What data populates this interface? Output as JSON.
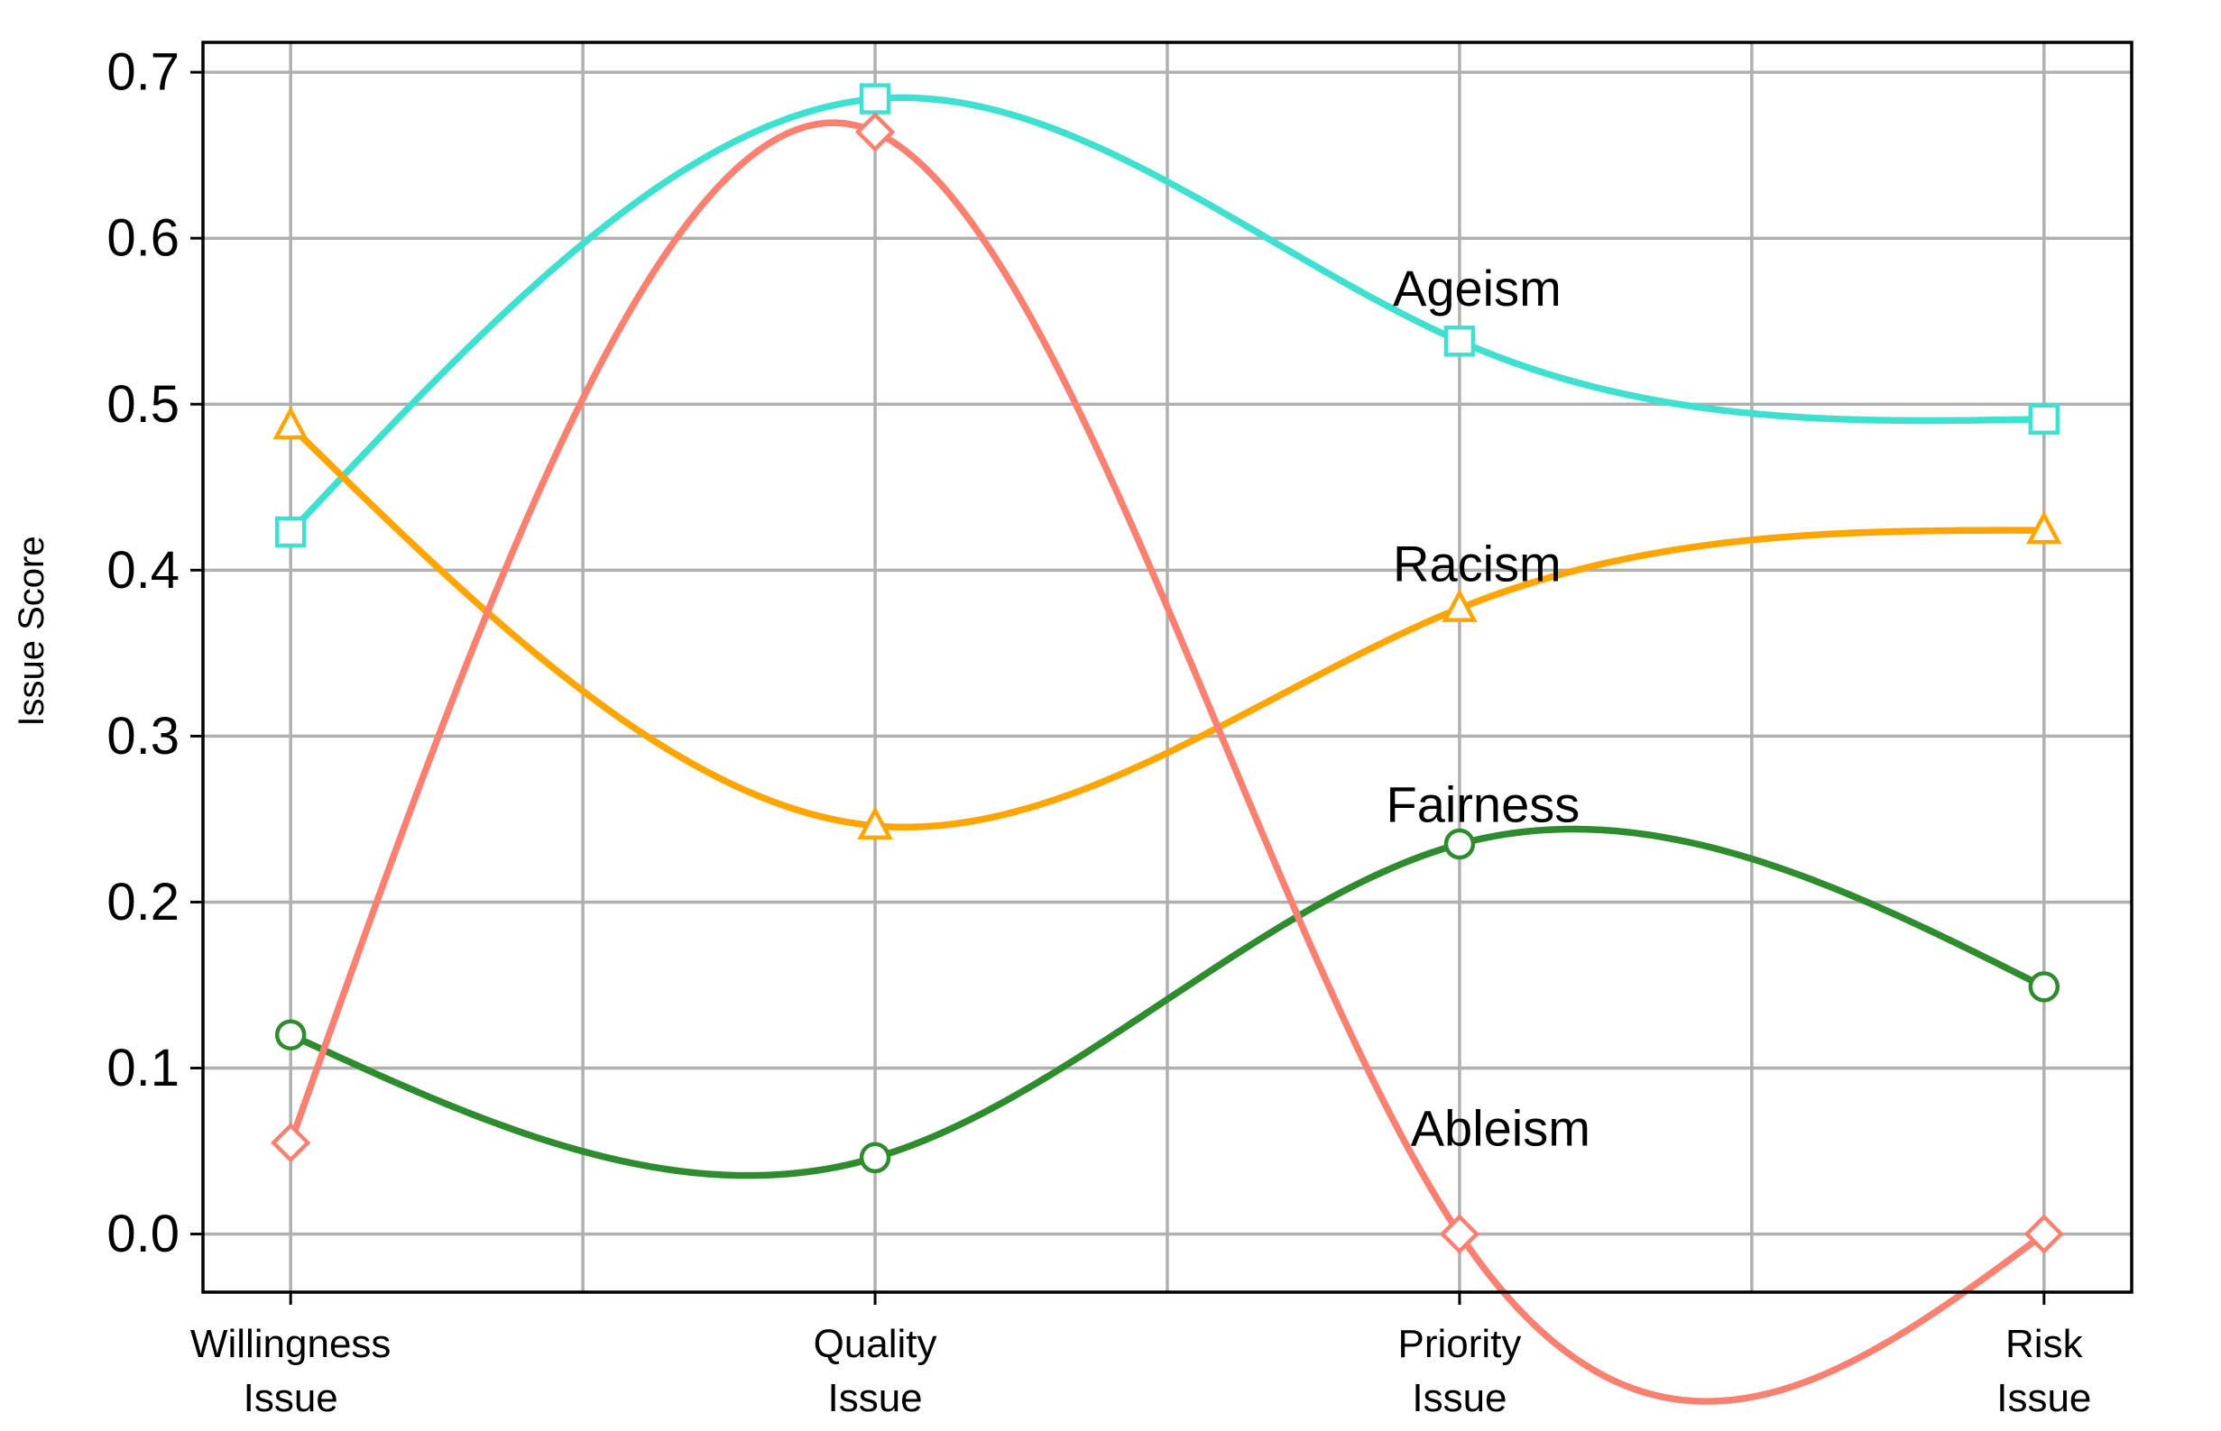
{
  "chart_data": {
    "type": "line",
    "title": "",
    "xlabel": "",
    "ylabel": "Issue Score",
    "categories": [
      [
        "Willingness",
        "Issue"
      ],
      [
        "Quality",
        "Issue"
      ],
      [
        "Priority",
        "Issue"
      ],
      [
        "Risk",
        "Issue"
      ]
    ],
    "x_range": [
      -0.15,
      3.15
    ],
    "ylim": [
      -0.035,
      0.718
    ],
    "yticks": [
      0.0,
      0.1,
      0.2,
      0.3,
      0.4,
      0.5,
      0.6,
      0.7
    ],
    "ytick_labels": [
      "0.0",
      "0.1",
      "0.2",
      "0.3",
      "0.4",
      "0.5",
      "0.6",
      "0.7"
    ],
    "x_gridlines": [
      0,
      0.5,
      1,
      1.5,
      2,
      2.5,
      3
    ],
    "grid": true,
    "legend": "none",
    "smooth": true,
    "series": [
      {
        "name": "Ageism",
        "color": "#40E0D0",
        "marker": "square",
        "values": [
          0.423,
          0.684,
          0.538,
          0.491
        ],
        "label_anchor": [
          2.03,
          0.57
        ]
      },
      {
        "name": "Racism",
        "color": "#FFA500",
        "marker": "triangle",
        "values": [
          0.487,
          0.246,
          0.377,
          0.424
        ],
        "label_anchor": [
          2.03,
          0.404
        ]
      },
      {
        "name": "Fairness",
        "color": "#2E8B2E",
        "marker": "circle",
        "values": [
          0.12,
          0.046,
          0.235,
          0.149
        ],
        "label_anchor": [
          2.04,
          0.259
        ]
      },
      {
        "name": "Ableism",
        "color": "#FA8072",
        "marker": "diamond",
        "values": [
          0.055,
          0.664,
          0.0,
          0.0
        ],
        "label_anchor": [
          2.07,
          0.064
        ]
      }
    ]
  }
}
